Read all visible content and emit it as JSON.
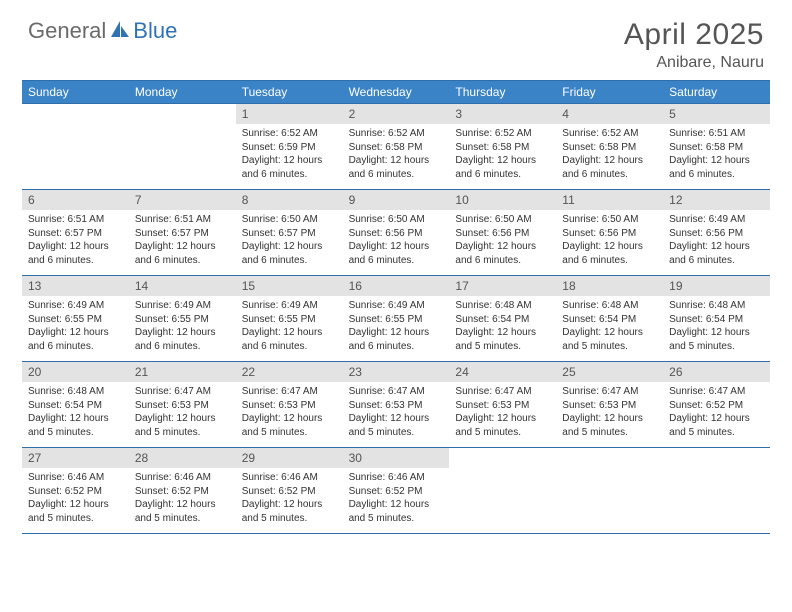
{
  "logo": {
    "general": "General",
    "blue": "Blue"
  },
  "title": "April 2025",
  "location": "Anibare, Nauru",
  "colors": {
    "header_bg": "#3a83c6",
    "header_text": "#ffffff",
    "border": "#2f6ea8",
    "num_bg": "#e3e3e3",
    "text": "#333333",
    "logo_gray": "#6a6a6a",
    "logo_blue": "#2f73b5",
    "title_gray": "#555555"
  },
  "day_names": [
    "Sunday",
    "Monday",
    "Tuesday",
    "Wednesday",
    "Thursday",
    "Friday",
    "Saturday"
  ],
  "weeks": [
    [
      null,
      null,
      {
        "d": "1",
        "sr": "6:52 AM",
        "ss": "6:59 PM",
        "dl": "12 hours and 6 minutes."
      },
      {
        "d": "2",
        "sr": "6:52 AM",
        "ss": "6:58 PM",
        "dl": "12 hours and 6 minutes."
      },
      {
        "d": "3",
        "sr": "6:52 AM",
        "ss": "6:58 PM",
        "dl": "12 hours and 6 minutes."
      },
      {
        "d": "4",
        "sr": "6:52 AM",
        "ss": "6:58 PM",
        "dl": "12 hours and 6 minutes."
      },
      {
        "d": "5",
        "sr": "6:51 AM",
        "ss": "6:58 PM",
        "dl": "12 hours and 6 minutes."
      }
    ],
    [
      {
        "d": "6",
        "sr": "6:51 AM",
        "ss": "6:57 PM",
        "dl": "12 hours and 6 minutes."
      },
      {
        "d": "7",
        "sr": "6:51 AM",
        "ss": "6:57 PM",
        "dl": "12 hours and 6 minutes."
      },
      {
        "d": "8",
        "sr": "6:50 AM",
        "ss": "6:57 PM",
        "dl": "12 hours and 6 minutes."
      },
      {
        "d": "9",
        "sr": "6:50 AM",
        "ss": "6:56 PM",
        "dl": "12 hours and 6 minutes."
      },
      {
        "d": "10",
        "sr": "6:50 AM",
        "ss": "6:56 PM",
        "dl": "12 hours and 6 minutes."
      },
      {
        "d": "11",
        "sr": "6:50 AM",
        "ss": "6:56 PM",
        "dl": "12 hours and 6 minutes."
      },
      {
        "d": "12",
        "sr": "6:49 AM",
        "ss": "6:56 PM",
        "dl": "12 hours and 6 minutes."
      }
    ],
    [
      {
        "d": "13",
        "sr": "6:49 AM",
        "ss": "6:55 PM",
        "dl": "12 hours and 6 minutes."
      },
      {
        "d": "14",
        "sr": "6:49 AM",
        "ss": "6:55 PM",
        "dl": "12 hours and 6 minutes."
      },
      {
        "d": "15",
        "sr": "6:49 AM",
        "ss": "6:55 PM",
        "dl": "12 hours and 6 minutes."
      },
      {
        "d": "16",
        "sr": "6:49 AM",
        "ss": "6:55 PM",
        "dl": "12 hours and 6 minutes."
      },
      {
        "d": "17",
        "sr": "6:48 AM",
        "ss": "6:54 PM",
        "dl": "12 hours and 5 minutes."
      },
      {
        "d": "18",
        "sr": "6:48 AM",
        "ss": "6:54 PM",
        "dl": "12 hours and 5 minutes."
      },
      {
        "d": "19",
        "sr": "6:48 AM",
        "ss": "6:54 PM",
        "dl": "12 hours and 5 minutes."
      }
    ],
    [
      {
        "d": "20",
        "sr": "6:48 AM",
        "ss": "6:54 PM",
        "dl": "12 hours and 5 minutes."
      },
      {
        "d": "21",
        "sr": "6:47 AM",
        "ss": "6:53 PM",
        "dl": "12 hours and 5 minutes."
      },
      {
        "d": "22",
        "sr": "6:47 AM",
        "ss": "6:53 PM",
        "dl": "12 hours and 5 minutes."
      },
      {
        "d": "23",
        "sr": "6:47 AM",
        "ss": "6:53 PM",
        "dl": "12 hours and 5 minutes."
      },
      {
        "d": "24",
        "sr": "6:47 AM",
        "ss": "6:53 PM",
        "dl": "12 hours and 5 minutes."
      },
      {
        "d": "25",
        "sr": "6:47 AM",
        "ss": "6:53 PM",
        "dl": "12 hours and 5 minutes."
      },
      {
        "d": "26",
        "sr": "6:47 AM",
        "ss": "6:52 PM",
        "dl": "12 hours and 5 minutes."
      }
    ],
    [
      {
        "d": "27",
        "sr": "6:46 AM",
        "ss": "6:52 PM",
        "dl": "12 hours and 5 minutes."
      },
      {
        "d": "28",
        "sr": "6:46 AM",
        "ss": "6:52 PM",
        "dl": "12 hours and 5 minutes."
      },
      {
        "d": "29",
        "sr": "6:46 AM",
        "ss": "6:52 PM",
        "dl": "12 hours and 5 minutes."
      },
      {
        "d": "30",
        "sr": "6:46 AM",
        "ss": "6:52 PM",
        "dl": "12 hours and 5 minutes."
      },
      null,
      null,
      null
    ]
  ],
  "labels": {
    "sunrise": "Sunrise:",
    "sunset": "Sunset:",
    "daylight": "Daylight:"
  }
}
